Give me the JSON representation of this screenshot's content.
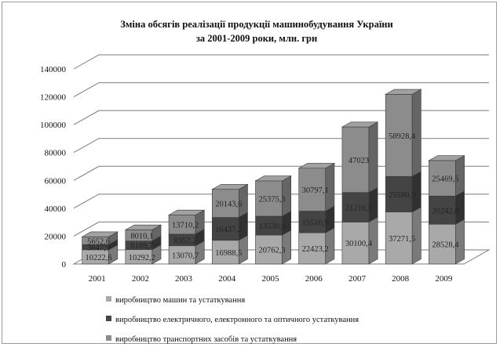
{
  "chart_data": {
    "type": "bar",
    "stacked": true,
    "three_d": true,
    "title": "Зміна обсягів реалізації продукції машинобудування  України за 2001-2009 роки, млн. грн",
    "title_lines": [
      "Зміна обсягів реалізації продукції машинобудування  України",
      "за 2001-2009 роки, млн. грн"
    ],
    "categories": [
      "2001",
      "2002",
      "2003",
      "2004",
      "2005",
      "2006",
      "2007",
      "2008",
      "2009"
    ],
    "ylim": [
      0,
      140000
    ],
    "yticks": [
      "0",
      "20000",
      "40000",
      "60000",
      "80000",
      "100000",
      "120000",
      "140000"
    ],
    "grid": true,
    "legend_position": "bottom",
    "series": [
      {
        "name": "виробництво машин та устаткування",
        "color": "#a9a9a9",
        "values": [
          10222.6,
          10292.2,
          13070.7,
          16988.5,
          20762.3,
          22423.2,
          30100.4,
          37271.5,
          28528.4
        ],
        "labels": [
          "10222,6",
          "10292,2",
          "13070,7",
          "16988,5",
          "20762,3",
          "22423,2",
          "30100,4",
          "37271,5",
          "28528,4"
        ]
      },
      {
        "name": "виробництво електричного, електронного та оптичного устаткування",
        "color": "#444444",
        "values": [
          3647.9,
          6189.7,
          8352.2,
          16437.2,
          13530.9,
          15510.9,
          21216.5,
          25580.5,
          20242.8
        ],
        "labels": [
          "3647,9",
          "6189,7",
          "8352,2",
          "16437,2",
          "13530,9",
          "15510,9",
          "21216,5",
          "25580,5",
          "20242,8"
        ]
      },
      {
        "name": "виробництво транспортних засобів та устаткування",
        "color": "#8c8c8c",
        "values": [
          5652.6,
          8010.1,
          13710.2,
          20143.6,
          25375.3,
          30797.1,
          47023,
          58928.4,
          25469.5
        ],
        "labels": [
          "5652,6",
          "8010,1",
          "13710,2",
          "20143,6",
          "25375,3",
          "30797,1",
          "47023",
          "58928,4",
          "25469,5"
        ]
      }
    ]
  }
}
